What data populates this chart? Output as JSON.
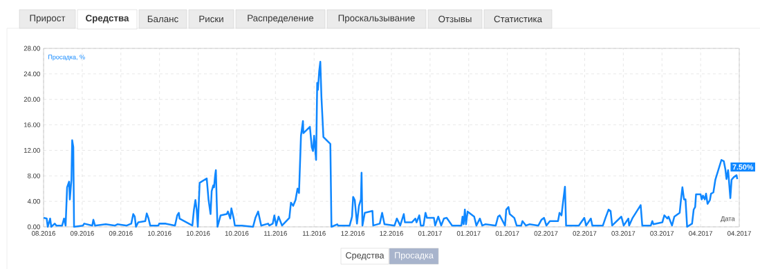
{
  "chart_data": {
    "type": "line",
    "ylabel": "Просадка, %",
    "xlabel": "Дата",
    "color": "#0f87ff",
    "line_style": "solid",
    "grid": true,
    "xlim": [
      "2016-08-25",
      "2017-04-16"
    ],
    "ylim": [
      0,
      28
    ],
    "xticks": [
      {
        "value": "2016-08-25",
        "label": "08.2016"
      },
      {
        "value": "2016-09-07",
        "label": "09.2016"
      },
      {
        "value": "2016-09-20",
        "label": "09.2016"
      },
      {
        "value": "2016-10-03",
        "label": "10.2016"
      },
      {
        "value": "2016-10-16",
        "label": "10.2016"
      },
      {
        "value": "2016-10-29",
        "label": "10.2016"
      },
      {
        "value": "2016-11-11",
        "label": "11.2016"
      },
      {
        "value": "2016-11-24",
        "label": "11.2016"
      },
      {
        "value": "2016-12-07",
        "label": "12.2016"
      },
      {
        "value": "2016-12-20",
        "label": "12.2016"
      },
      {
        "value": "2017-01-02",
        "label": "01.2017"
      },
      {
        "value": "2017-01-15",
        "label": "01.2017"
      },
      {
        "value": "2017-01-28",
        "label": "01.2017"
      },
      {
        "value": "2017-02-10",
        "label": "02.2017"
      },
      {
        "value": "2017-02-23",
        "label": "02.2017"
      },
      {
        "value": "2017-03-08",
        "label": "03.2017"
      },
      {
        "value": "2017-03-21",
        "label": "03.2017"
      },
      {
        "value": "2017-04-03",
        "label": "04.2017"
      },
      {
        "value": "2017-04-16",
        "label": "04.2017"
      }
    ],
    "yticks": [
      {
        "value": 0,
        "label": "0.00"
      },
      {
        "value": 4,
        "label": "4.00"
      },
      {
        "value": 8,
        "label": "8.00"
      },
      {
        "value": 12,
        "label": "12.00"
      },
      {
        "value": 16,
        "label": "16.00"
      },
      {
        "value": 20,
        "label": "20.00"
      },
      {
        "value": 24,
        "label": "24.00"
      },
      {
        "value": 28,
        "label": "28.00"
      }
    ],
    "x": [
      "2016-08-25T00:00",
      "2016-08-26T01:00",
      "2016-08-26T10:00",
      "2016-08-27T05:00",
      "2016-08-27T14:00",
      "2016-08-28T18:00",
      "2016-08-29T07:00",
      "2016-08-31T06:00",
      "2016-08-31T21:00",
      "2016-09-01T10:00",
      "2016-09-01T22:00",
      "2016-09-02T14:00",
      "2016-09-02T20:00",
      "2016-09-03T09:00",
      "2016-09-03T15:00",
      "2016-09-04T00:00",
      "2016-09-04T06:00",
      "2016-09-07T06:00",
      "2016-09-07T16:00",
      "2016-09-10T09:00",
      "2016-09-10T18:00",
      "2016-09-11T07:00",
      "2016-09-14T22:00",
      "2016-09-18T01:00",
      "2016-09-18T20:00",
      "2016-09-21T23:00",
      "2016-09-23T12:00",
      "2016-09-24T04:00",
      "2016-09-24T16:00",
      "2016-09-25T02:00",
      "2016-09-25T20:00",
      "2016-09-28T05:00",
      "2016-09-28T17:00",
      "2016-09-29T06:00",
      "2016-09-29T21:00",
      "2016-10-02T15:00",
      "2016-10-02T21:00",
      "2016-10-05T02:00",
      "2016-10-08T05:00",
      "2016-10-08T23:00",
      "2016-10-09T12:00",
      "2016-10-09T18:00",
      "2016-10-14T01:00",
      "2016-10-14T14:00",
      "2016-10-15T02:00",
      "2016-10-15T12:00",
      "2016-10-15T21:00",
      "2016-10-16T12:00",
      "2016-10-18T21:00",
      "2016-10-19T12:00",
      "2016-10-20T04:00",
      "2016-10-20T13:00",
      "2016-10-21T02:00",
      "2016-10-21T08:00",
      "2016-10-21T17:00",
      "2016-10-21T23:00",
      "2016-10-22T06:00",
      "2016-10-22T12:00",
      "2016-10-23T13:00",
      "2016-10-25T15:00",
      "2016-10-26T00:00",
      "2016-10-26T19:00",
      "2016-10-27T04:00",
      "2016-10-27T23:00",
      "2016-10-28T08:00",
      "2016-10-30T17:00",
      "2016-11-03T11:00",
      "2016-11-04T06:00",
      "2016-11-05T04:00",
      "2016-11-06T05:00",
      "2016-11-08T13:00",
      "2016-11-08T22:00",
      "2016-11-10T02:00",
      "2016-11-10T15:00",
      "2016-11-11T06:00",
      "2016-11-12T01:00",
      "2016-11-13T05:00",
      "2016-11-15T16:00",
      "2016-11-16T05:00",
      "2016-11-16T23:00",
      "2016-11-17T18:00",
      "2016-11-18T10:00",
      "2016-11-18T22:00",
      "2016-11-19T14:00",
      "2016-11-20T06:00",
      "2016-11-20T09:00",
      "2016-11-22T14:00",
      "2016-11-23T05:00",
      "2016-11-23T15:00",
      "2016-11-24T00:00",
      "2016-11-24T16:00",
      "2016-11-25T01:00",
      "2016-11-25T07:00",
      "2016-11-25T17:00",
      "2016-11-26T02:00",
      "2016-11-26T11:00",
      "2016-11-27T03:00",
      "2016-11-29T11:00",
      "2016-11-29T20:00",
      "2016-12-01T19:00",
      "2016-12-02T01:00",
      "2016-12-05T23:00",
      "2016-12-06T18:00",
      "2016-12-07T03:00",
      "2016-12-07T16:00",
      "2016-12-08T10:00",
      "2016-12-09T02:00",
      "2016-12-09T18:00",
      "2016-12-09T23:00",
      "2016-12-10T06:00",
      "2016-12-11T01:00",
      "2016-12-13T15:00",
      "2016-12-13T21:00",
      "2016-12-16T02:00",
      "2016-12-16T21:00",
      "2016-12-17T16:00",
      "2016-12-21T01:00",
      "2016-12-21T20:00",
      "2016-12-22T23:00",
      "2016-12-24T04:00",
      "2016-12-24T13:00",
      "2016-12-26T21:00",
      "2016-12-28T01:00",
      "2016-12-28T11:00",
      "2016-12-29T09:00",
      "2016-12-29T21:00",
      "2016-12-30T19:00",
      "2016-12-31T11:00",
      "2016-12-31T23:00",
      "2017-01-03T07:00",
      "2017-01-03T17:00",
      "2017-01-04T18:00",
      "2017-01-05T18:00",
      "2017-01-06T16:00",
      "2017-01-07T14:00",
      "2017-01-09T10:00",
      "2017-01-12T13:00",
      "2017-01-12T22:00",
      "2017-01-13T07:00",
      "2017-01-13T17:00",
      "2017-01-14T02:00",
      "2017-01-14T15:00",
      "2017-01-16T20:00",
      "2017-01-17T14:00",
      "2017-01-18T18:00",
      "2017-01-19T13:00",
      "2017-01-20T14:00",
      "2017-01-24T02:00",
      "2017-01-24T21:00",
      "2017-01-25T10:00",
      "2017-01-27T05:00",
      "2017-01-27T15:00",
      "2017-01-28T09:00",
      "2017-01-28T19:00",
      "2017-01-30T08:00",
      "2017-01-31T03:00",
      "2017-02-01T16:00",
      "2017-02-02T02:00",
      "2017-02-03T06:00",
      "2017-02-04T10:00",
      "2017-02-07T10:00",
      "2017-02-08T11:00",
      "2017-02-09T08:00",
      "2017-02-10T03:00",
      "2017-02-11T07:00",
      "2017-02-14T01:00",
      "2017-02-14T13:00",
      "2017-02-15T05:00",
      "2017-02-15T17:00",
      "2017-02-16T09:00",
      "2017-02-16T18:00",
      "2017-02-21T01:00",
      "2017-02-22T21:00",
      "2017-02-23T12:00",
      "2017-02-25T02:00",
      "2017-02-25T14:00",
      "2017-03-01T03:00",
      "2017-03-02T00:00",
      "2017-03-03T01:00",
      "2017-03-03T17:00",
      "2017-03-04T06:00",
      "2017-03-07T08:00",
      "2017-03-08T03:00",
      "2017-03-09T17:00",
      "2017-03-09T23:00",
      "2017-03-11T03:00",
      "2017-03-13T20:00",
      "2017-03-14T09:00",
      "2017-03-17T06:00",
      "2017-03-17T18:00",
      "2017-03-18T03:00",
      "2017-03-21T03:00",
      "2017-03-21T19:00",
      "2017-03-22T20:00",
      "2017-03-23T05:00",
      "2017-03-24T09:00",
      "2017-03-25T04:00",
      "2017-03-26T23:00",
      "2017-03-27T09:00",
      "2017-03-27T21:00",
      "2017-03-28T10:00",
      "2017-03-28T22:00",
      "2017-03-29T11:00",
      "2017-03-31T03:00",
      "2017-03-31T16:00",
      "2017-04-01T04:00",
      "2017-04-01T11:00",
      "2017-04-03T00:00",
      "2017-04-03T09:00",
      "2017-04-03T19:00",
      "2017-04-04T10:00",
      "2017-04-04T20:00",
      "2017-04-05T08:00",
      "2017-04-06T03:00",
      "2017-04-06T12:00",
      "2017-04-07T07:00",
      "2017-04-07T23:00",
      "2017-04-10T00:00",
      "2017-04-10T19:00",
      "2017-04-11T08:00",
      "2017-04-11T17:00",
      "2017-04-12T06:00",
      "2017-04-13T00:00",
      "2017-04-13T10:00",
      "2017-04-14T04:00",
      "2017-04-15T02:00",
      "2017-04-15T08:00"
    ],
    "values": [
      1.4,
      1.3,
      0,
      1.3,
      0,
      0.5,
      0.2,
      0.2,
      1.3,
      0.2,
      6.2,
      7.1,
      4.3,
      7.4,
      13.6,
      12.5,
      0,
      0.2,
      0.5,
      0.2,
      1.1,
      0.2,
      0.4,
      0.2,
      0.4,
      0.2,
      0.5,
      2.0,
      1.6,
      0,
      0.7,
      0.9,
      2.1,
      1.4,
      0.2,
      0.2,
      0.5,
      0.5,
      0.2,
      1.8,
      2.2,
      1.3,
      0.2,
      2.7,
      4.2,
      2.7,
      0,
      6.9,
      7.6,
      4.2,
      2.0,
      5.6,
      6.5,
      6.2,
      8.1,
      8.9,
      3.8,
      0,
      1.8,
      2.0,
      2.4,
      1.3,
      2.9,
      1.3,
      0.2,
      0.2,
      0,
      1.4,
      2.4,
      0.2,
      0.5,
      0.2,
      0.5,
      1.8,
      0.2,
      1.6,
      0.2,
      1.4,
      3.8,
      3.3,
      4.2,
      6.0,
      5.3,
      14.3,
      16.6,
      14.7,
      15.7,
      12.5,
      11.9,
      14.3,
      10.5,
      22.6,
      21.5,
      24.4,
      25.9,
      20.4,
      14.1,
      13.0,
      0,
      0.4,
      0.2,
      0.2,
      1.6,
      4.7,
      4.2,
      0.5,
      3.3,
      4.3,
      8.5,
      0.2,
      2.2,
      2.5,
      0.2,
      0.5,
      2.2,
      0.4,
      0.2,
      1.3,
      0.2,
      2.0,
      0.7,
      0.7,
      1.3,
      0.7,
      1.8,
      0.2,
      0.2,
      2.2,
      1.4,
      1.4,
      0.2,
      1.6,
      0.2,
      1.3,
      1.4,
      0.2,
      0.2,
      1.6,
      0.4,
      2.7,
      0.4,
      2.4,
      1.6,
      0.2,
      1.3,
      0.2,
      0.4,
      0.2,
      1.6,
      1.8,
      0.2,
      2.7,
      3.1,
      2.0,
      1.4,
      0.2,
      0.2,
      0.9,
      0.2,
      0.4,
      0.2,
      1.1,
      1.4,
      0.2,
      0.9,
      0.9,
      2.2,
      1.8,
      3.8,
      6.3,
      0.2,
      0.2,
      1.4,
      0.2,
      1.3,
      0.2,
      0.2,
      1.4,
      2.7,
      2.5,
      0.2,
      1.6,
      0.2,
      1.3,
      0.2,
      1.4,
      3.4,
      0.2,
      0.2,
      0.9,
      0.4,
      0.7,
      1.8,
      1.3,
      1.6,
      0.2,
      1.6,
      2.2,
      4.2,
      6.2,
      4.3,
      4.3,
      0,
      0.5,
      2.7,
      3.1,
      5.1,
      5.1,
      4.3,
      4.9,
      4.3,
      5.2,
      3.6,
      4.2,
      5.2,
      5.4,
      7.4,
      10.5,
      10.3,
      9.0,
      7.5,
      8.9,
      4.5,
      7.4,
      7.8,
      8.1,
      7.5
    ],
    "annotations": [
      "Прирост",
      "Средства",
      "Баланс",
      "Риски",
      "Распределение",
      "Проскальзывание",
      "Отзывы",
      "Статистика",
      "Средства",
      "Просадка",
      {
        "text": "7.50%",
        "x": "2017-04-15T08:00",
        "y": 7.5
      }
    ]
  }
}
